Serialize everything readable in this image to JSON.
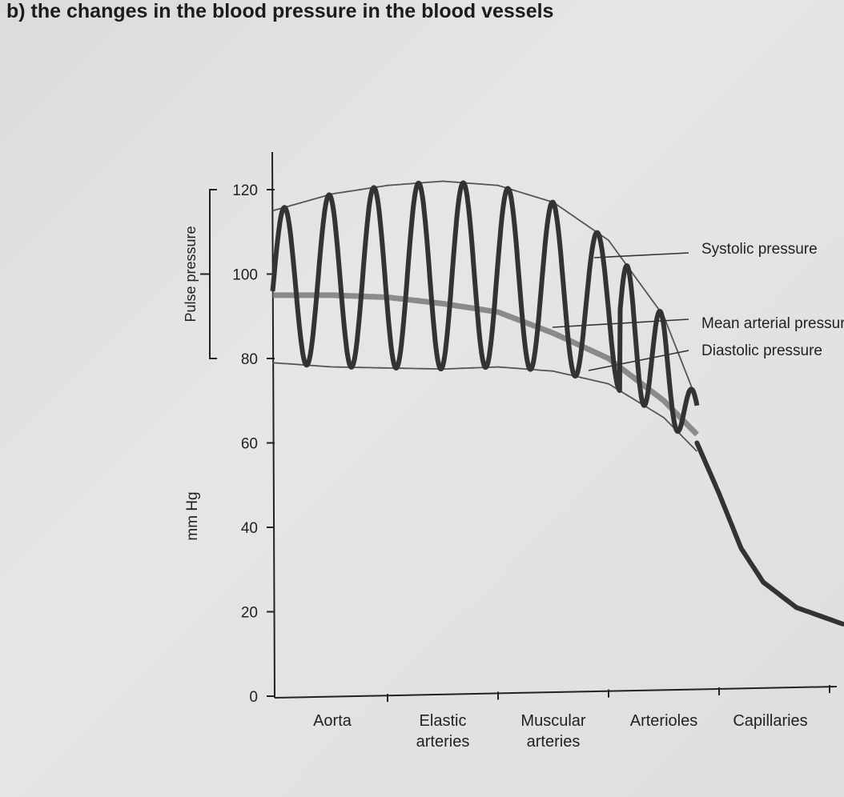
{
  "title": "b) the changes in the blood pressure in the blood vessels",
  "chart_data": {
    "type": "line",
    "title": "",
    "ylabel": "mm Hg",
    "xlabel": "",
    "ylim": [
      0,
      125
    ],
    "yticks": [
      0,
      20,
      40,
      60,
      80,
      100,
      120
    ],
    "categories": [
      "Aorta",
      "Elastic arteries",
      "Muscular arteries",
      "Arterioles",
      "Capillaries"
    ],
    "category_lines": [
      [
        "Aorta"
      ],
      [
        "Elastic",
        "arteries"
      ],
      [
        "Muscular",
        "arteries"
      ],
      [
        "Arterioles"
      ],
      [
        "Capillaries"
      ]
    ],
    "grid": false,
    "pulse_pressure": {
      "label": "Pulse pressure",
      "range": [
        80,
        120
      ]
    },
    "series": [
      {
        "name": "Systolic pressure",
        "label": "Systolic pressure",
        "points": [
          [
            -0.54,
            115
          ],
          [
            0,
            119
          ],
          [
            0.5,
            121
          ],
          [
            1,
            122
          ],
          [
            1.5,
            121
          ],
          [
            2,
            117
          ],
          [
            2.5,
            108
          ],
          [
            3,
            90
          ],
          [
            3.3,
            70
          ]
        ]
      },
      {
        "name": "Mean arterial pressure",
        "label": "Mean arterial pressure",
        "points": [
          [
            -0.54,
            95
          ],
          [
            0,
            95
          ],
          [
            0.5,
            94.5
          ],
          [
            1,
            93
          ],
          [
            1.5,
            91
          ],
          [
            2,
            86
          ],
          [
            2.5,
            80
          ],
          [
            3,
            70
          ],
          [
            3.3,
            62
          ]
        ]
      },
      {
        "name": "Diastolic pressure",
        "label": "Diastolic pressure",
        "points": [
          [
            -0.54,
            79
          ],
          [
            0,
            78
          ],
          [
            1,
            77.5
          ],
          [
            1.5,
            78
          ],
          [
            2,
            77
          ],
          [
            2.5,
            74
          ],
          [
            3,
            66
          ],
          [
            3.3,
            58
          ]
        ]
      },
      {
        "name": "",
        "points": [
          [
            3.3,
            60
          ],
          [
            3.5,
            48
          ],
          [
            3.7,
            35
          ],
          [
            3.9,
            27
          ],
          [
            4.2,
            21
          ],
          [
            4.63,
            17
          ]
        ]
      }
    ],
    "colors": {
      "wave": "#333333",
      "mean": "#7a7a7a",
      "envelope": "#555555",
      "axis": "#222222"
    }
  }
}
